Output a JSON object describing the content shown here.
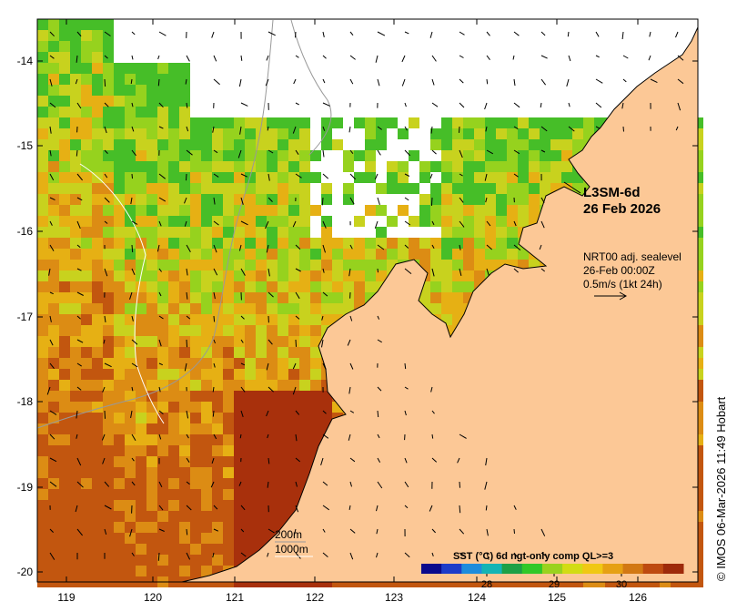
{
  "map": {
    "title_product": "L3SM-6d",
    "title_date": "26 Feb 2026",
    "current_note": [
      "NRT00 adj. sealevel",
      "26-Feb 00:00Z",
      "0.5m/s (1kt 24h)"
    ],
    "contours": [
      "200m",
      "1000m"
    ],
    "colorbar_title": "SST (°C) 6d ngt-only comp QL>=3",
    "colorbar_ticks": [
      "28",
      "29",
      "30"
    ],
    "colorbar_colors": [
      "#0a0a8c",
      "#1e3cc8",
      "#1e8cdc",
      "#14b4b4",
      "#1ea046",
      "#32c828",
      "#9ad21e",
      "#d2dc14",
      "#f0c814",
      "#e6a014",
      "#d27814",
      "#be4a10",
      "#9e2a0a"
    ],
    "credit": "© IMOS 06-Mar-2026 11:49 Hobart",
    "lat_labels": [
      "-14",
      "-15",
      "-16",
      "-17",
      "-18",
      "-19",
      "-20"
    ],
    "lon_labels": [
      "119",
      "120",
      "121",
      "122",
      "123",
      "124",
      "125",
      "126"
    ],
    "land_color": "#fcc896"
  }
}
